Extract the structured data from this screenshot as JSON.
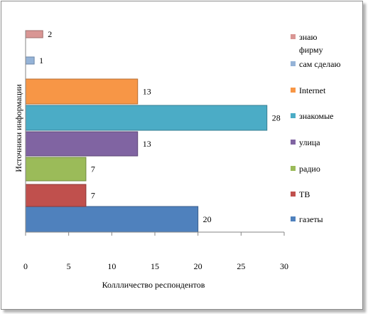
{
  "chart_data": {
    "type": "bar",
    "orientation": "horizontal",
    "bar_layout": "staggered",
    "title": "",
    "xlabel": "Коллличество респондентов",
    "ylabel": "Источники информации",
    "xlim": [
      0,
      30
    ],
    "xticks": [
      0,
      5,
      10,
      15,
      20,
      25,
      30
    ],
    "grid": false,
    "legend_position": "right",
    "series": [
      {
        "name": "газеты",
        "value": 20,
        "color": "#4f81bd",
        "edge": "#385d8a"
      },
      {
        "name": "ТВ",
        "value": 7,
        "color": "#c0504d",
        "edge": "#8c3836"
      },
      {
        "name": "радио",
        "value": 7,
        "color": "#9bbb59",
        "edge": "#71893f"
      },
      {
        "name": "улица",
        "value": 13,
        "color": "#8064a2",
        "edge": "#5c4776"
      },
      {
        "name": "знакомые",
        "value": 28,
        "color": "#4bacc6",
        "edge": "#357d91"
      },
      {
        "name": "Internet",
        "value": 13,
        "color": "#f79646",
        "edge": "#b66d31"
      },
      {
        "name": "сам сделаю",
        "value": 1,
        "color": "#95b3d7",
        "edge": "#6d87a8"
      },
      {
        "name": "знаю фирму",
        "legend_lines": [
          "знаю",
          "фирму"
        ],
        "value": 2,
        "color": "#d99694",
        "edge": "#a06e6c"
      }
    ]
  }
}
